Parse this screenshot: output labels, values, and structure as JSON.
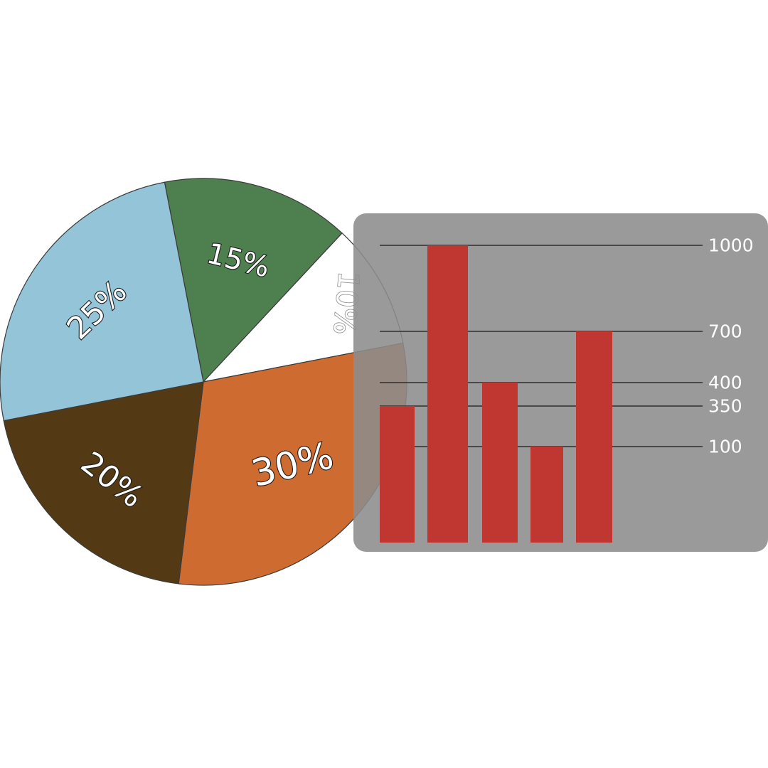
{
  "chart_data": [
    {
      "type": "pie",
      "slices": [
        {
          "label": "15%",
          "value": 15,
          "color": "#4e7f4e"
        },
        {
          "label": "10%",
          "value": 10,
          "color": "#ffffff"
        },
        {
          "label": "30%",
          "value": 30,
          "color": "#cd6b31"
        },
        {
          "label": "20%",
          "value": 20,
          "color": "#533a15"
        },
        {
          "label": "25%",
          "value": 25,
          "color": "#93c4d8"
        }
      ]
    },
    {
      "type": "bar",
      "bar_color": "#c03630",
      "panel_color": "#8c8c8c",
      "values": [
        350,
        1000,
        400,
        100,
        700
      ],
      "tick_labels": [
        "1000",
        "700",
        "400",
        "350",
        "100"
      ]
    }
  ]
}
